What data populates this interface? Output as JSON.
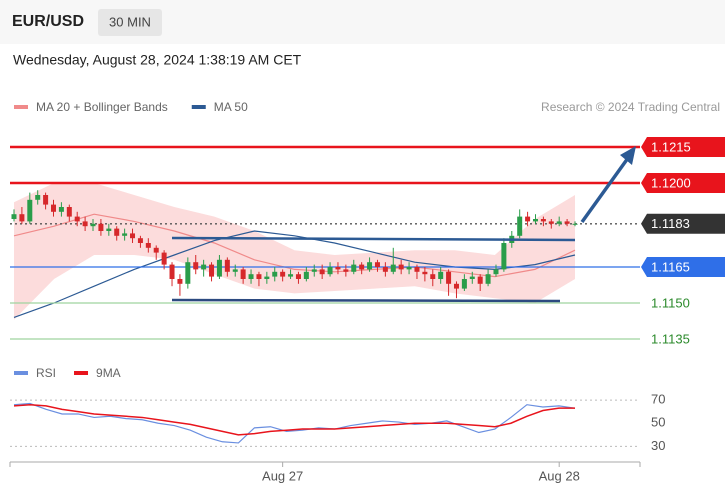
{
  "chart_data": {
    "type": "candlestick",
    "symbol": "EUR/USD",
    "timeframe": "30 MIN",
    "timestamp": "Wednesday, August 28, 2024 1:38:19 AM CET",
    "credit": "Research © 2024 Trading Central",
    "up_color": "#2a9d4a",
    "down_color": "#d6282b",
    "ylim": [
      1.1128,
      1.1224
    ],
    "candles": [
      [
        1.1185,
        1.1189,
        1.1184,
        1.1187
      ],
      [
        1.1187,
        1.119,
        1.1183,
        1.1184
      ],
      [
        1.1184,
        1.1196,
        1.1183,
        1.1193
      ],
      [
        1.1193,
        1.1197,
        1.1191,
        1.1195
      ],
      [
        1.1195,
        1.1196,
        1.1189,
        1.1191
      ],
      [
        1.1191,
        1.1193,
        1.1186,
        1.1188
      ],
      [
        1.1188,
        1.1192,
        1.1186,
        1.119
      ],
      [
        1.119,
        1.1191,
        1.1184,
        1.1186
      ],
      [
        1.1186,
        1.1188,
        1.1182,
        1.1184
      ],
      [
        1.1184,
        1.1186,
        1.118,
        1.1182
      ],
      [
        1.1182,
        1.1185,
        1.118,
        1.1183
      ],
      [
        1.1183,
        1.1185,
        1.1178,
        1.118
      ],
      [
        1.118,
        1.1183,
        1.1178,
        1.1181
      ],
      [
        1.1181,
        1.1182,
        1.1176,
        1.1178
      ],
      [
        1.1178,
        1.1181,
        1.1176,
        1.1179
      ],
      [
        1.1179,
        1.1181,
        1.1175,
        1.1177
      ],
      [
        1.1177,
        1.1178,
        1.1173,
        1.1175
      ],
      [
        1.1175,
        1.1177,
        1.1171,
        1.1173
      ],
      [
        1.1173,
        1.1174,
        1.1168,
        1.1171
      ],
      [
        1.1171,
        1.1172,
        1.1164,
        1.1166
      ],
      [
        1.1166,
        1.1167,
        1.1157,
        1.116
      ],
      [
        1.116,
        1.1162,
        1.1153,
        1.1158
      ],
      [
        1.1158,
        1.1169,
        1.1156,
        1.1167
      ],
      [
        1.1167,
        1.117,
        1.1162,
        1.1164
      ],
      [
        1.1164,
        1.1168,
        1.1161,
        1.1166
      ],
      [
        1.1166,
        1.1167,
        1.1159,
        1.1161
      ],
      [
        1.1161,
        1.117,
        1.116,
        1.1168
      ],
      [
        1.1168,
        1.1169,
        1.1161,
        1.1163
      ],
      [
        1.1163,
        1.1166,
        1.1161,
        1.1164
      ],
      [
        1.1164,
        1.1165,
        1.1158,
        1.116
      ],
      [
        1.116,
        1.1164,
        1.1158,
        1.1162
      ],
      [
        1.1162,
        1.1163,
        1.1157,
        1.116
      ],
      [
        1.116,
        1.1163,
        1.1158,
        1.1161
      ],
      [
        1.1161,
        1.1165,
        1.1159,
        1.1163
      ],
      [
        1.1163,
        1.1164,
        1.1159,
        1.1161
      ],
      [
        1.1161,
        1.1164,
        1.116,
        1.1162
      ],
      [
        1.1162,
        1.1163,
        1.1158,
        1.116
      ],
      [
        1.116,
        1.1165,
        1.1159,
        1.1163
      ],
      [
        1.1163,
        1.1166,
        1.1161,
        1.1164
      ],
      [
        1.1164,
        1.1166,
        1.116,
        1.1162
      ],
      [
        1.1162,
        1.1167,
        1.1161,
        1.1165
      ],
      [
        1.1165,
        1.1167,
        1.1162,
        1.1164
      ],
      [
        1.1164,
        1.1166,
        1.1161,
        1.1163
      ],
      [
        1.1163,
        1.1168,
        1.1162,
        1.1166
      ],
      [
        1.1166,
        1.1167,
        1.1162,
        1.1164
      ],
      [
        1.1164,
        1.1169,
        1.1163,
        1.1167
      ],
      [
        1.1167,
        1.1168,
        1.1163,
        1.1165
      ],
      [
        1.1165,
        1.1167,
        1.1161,
        1.1163
      ],
      [
        1.1163,
        1.1173,
        1.1162,
        1.1166
      ],
      [
        1.1166,
        1.1168,
        1.1162,
        1.1164
      ],
      [
        1.1164,
        1.1167,
        1.1162,
        1.1165
      ],
      [
        1.1165,
        1.1166,
        1.116,
        1.1163
      ],
      [
        1.1163,
        1.1165,
        1.1159,
        1.1162
      ],
      [
        1.1162,
        1.1164,
        1.1157,
        1.116
      ],
      [
        1.116,
        1.1165,
        1.1158,
        1.1163
      ],
      [
        1.1163,
        1.1164,
        1.1153,
        1.1158
      ],
      [
        1.1158,
        1.1159,
        1.1152,
        1.1156
      ],
      [
        1.1156,
        1.1162,
        1.1155,
        1.116
      ],
      [
        1.116,
        1.1163,
        1.1158,
        1.1161
      ],
      [
        1.1161,
        1.1162,
        1.1155,
        1.1158
      ],
      [
        1.1158,
        1.1164,
        1.1157,
        1.1162
      ],
      [
        1.1162,
        1.1166,
        1.1161,
        1.1164
      ],
      [
        1.1164,
        1.1177,
        1.1163,
        1.1175
      ],
      [
        1.1175,
        1.118,
        1.1173,
        1.1178
      ],
      [
        1.1178,
        1.1189,
        1.1177,
        1.1186
      ],
      [
        1.1186,
        1.1188,
        1.1182,
        1.1184
      ],
      [
        1.1184,
        1.1187,
        1.1183,
        1.1185
      ],
      [
        1.1185,
        1.1186,
        1.1182,
        1.1184
      ],
      [
        1.1184,
        1.1185,
        1.1181,
        1.1183
      ],
      [
        1.1183,
        1.1186,
        1.1182,
        1.1184
      ],
      [
        1.1184,
        1.1185,
        1.1182,
        1.1183
      ],
      [
        1.1183,
        1.1184,
        1.1182,
        1.1183
      ]
    ],
    "overlays": [
      {
        "name": "MA 20 + Bollinger Bands",
        "color": "#f08a8a",
        "band_color": "#fbd3d3",
        "values": [
          1.1178,
          1.1182,
          1.1187,
          1.1184,
          1.118,
          1.1175,
          1.1168,
          1.1164,
          1.1163,
          1.1164,
          1.1165,
          1.1163,
          1.1161,
          1.1164,
          1.1172
        ],
        "upper": [
          1.1192,
          1.12,
          1.12,
          1.1195,
          1.119,
          1.1186,
          1.118,
          1.1172,
          1.117,
          1.1171,
          1.1172,
          1.1172,
          1.117,
          1.1185,
          1.1195
        ],
        "lower": [
          1.1143,
          1.116,
          1.117,
          1.117,
          1.1168,
          1.1162,
          1.1156,
          1.1154,
          1.1155,
          1.1156,
          1.1157,
          1.1154,
          1.1152,
          1.115,
          1.116
        ]
      },
      {
        "name": "MA 50",
        "color": "#2c5a94",
        "values": [
          1.1144,
          1.115,
          1.1157,
          1.1164,
          1.117,
          1.1176,
          1.118,
          1.1178,
          1.1175,
          1.1171,
          1.1167,
          1.1165,
          1.1164,
          1.1166,
          1.117
        ]
      }
    ],
    "levels": [
      {
        "value": 1.1215,
        "label": "1.1215",
        "color": "#e8141c",
        "line": "solid",
        "tag": "box"
      },
      {
        "value": 1.12,
        "label": "1.1200",
        "color": "#e8141c",
        "line": "solid",
        "tag": "box"
      },
      {
        "value": 1.1183,
        "label": "1.1183",
        "color": "#333333",
        "line": "dotted",
        "tag": "box"
      },
      {
        "value": 1.1165,
        "label": "1.1165",
        "color": "#2f6fe8",
        "line": "solid",
        "tag": "box"
      },
      {
        "value": 1.115,
        "label": "1.1150",
        "color": "#9fd49f",
        "line": "solid",
        "tag": "text"
      },
      {
        "value": 1.1135,
        "label": "1.1135",
        "color": "#9fd49f",
        "line": "solid",
        "tag": "text"
      }
    ],
    "xticks": [
      {
        "value": 34,
        "label": "Aug 27"
      },
      {
        "value": 69,
        "label": "Aug 28"
      }
    ],
    "rsi": {
      "ylim": [
        20,
        83
      ],
      "yticks": [
        70,
        50,
        30
      ],
      "series": [
        {
          "name": "RSI",
          "color": "#6a8fe0",
          "values": [
            66,
            67,
            62,
            58,
            58,
            55,
            56,
            54,
            53,
            50,
            48,
            44,
            38,
            34,
            33,
            46,
            47,
            43,
            44,
            46,
            45,
            48,
            50,
            52,
            51,
            49,
            50,
            52,
            47,
            42,
            45,
            55,
            66,
            64,
            65,
            63
          ]
        },
        {
          "name": "9MA",
          "color": "#e8141c",
          "values": [
            65,
            66,
            65,
            62,
            60,
            58,
            57,
            56,
            55,
            53,
            51,
            49,
            46,
            43,
            40,
            41,
            43,
            44,
            45,
            45,
            45,
            46,
            47,
            48,
            49,
            50,
            50,
            50,
            49,
            48,
            47,
            50,
            56,
            61,
            63,
            63
          ]
        }
      ]
    }
  }
}
